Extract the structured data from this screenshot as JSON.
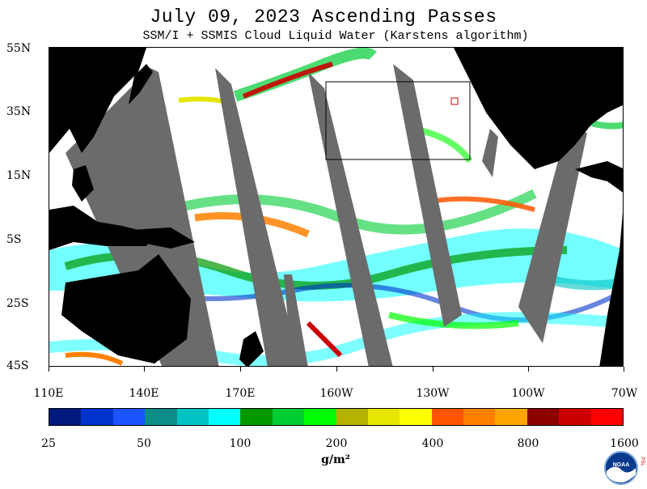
{
  "title": "July 09, 2023  Ascending Passes",
  "subtitle": "SSM/I + SSMIS Cloud Liquid Water (Karstens algorithm)",
  "map": {
    "lat_labels": [
      "55N",
      "35N",
      "15N",
      "5S",
      "25S",
      "45S"
    ],
    "lon_labels": [
      "110E",
      "140E",
      "170E",
      "160W",
      "130W",
      "100W",
      "70W"
    ],
    "gap_color": "#6b6b6b",
    "land_color": "#000000",
    "background_color": "#ffffff"
  },
  "colorbar": {
    "colors": [
      "#001a80",
      "#0033cc",
      "#1a53ff",
      "#0d8c8c",
      "#00c2c2",
      "#00ffff",
      "#009900",
      "#00cc33",
      "#00ff00",
      "#b3b300",
      "#e6e600",
      "#ffff00",
      "#ff5500",
      "#ff8000",
      "#ffa500",
      "#8c0000",
      "#cc0000",
      "#ff0000"
    ],
    "tick_labels": [
      "25",
      "50",
      "100",
      "200",
      "400",
      "800",
      "1600"
    ],
    "unit": "g/m²"
  },
  "logo": {
    "text": "NOAA",
    "side_text": "PSL",
    "icon": "noaa-logo-icon"
  }
}
